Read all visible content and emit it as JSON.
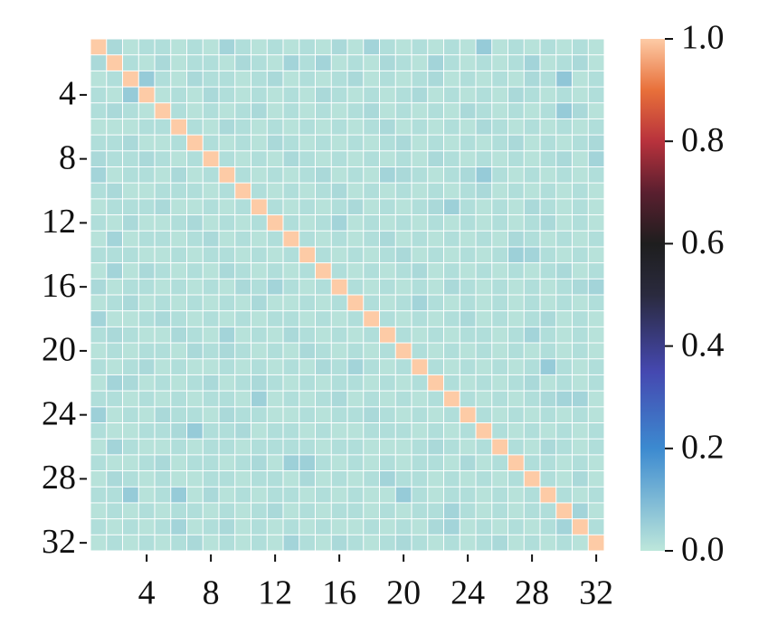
{
  "chart_data": {
    "type": "heatmap",
    "xlim": [
      0.5,
      32.5
    ],
    "ylim": [
      0.5,
      32.5
    ],
    "xticks": [
      4,
      8,
      12,
      16,
      20,
      24,
      28,
      32
    ],
    "yticks": [
      4,
      8,
      12,
      16,
      20,
      24,
      28,
      32
    ],
    "colorbar_lim": [
      0,
      1
    ],
    "colorbar_ticks": [
      {
        "value": 0,
        "label": "0.0"
      },
      {
        "value": 0.2,
        "label": "0.2"
      },
      {
        "value": 0.4,
        "label": "0.4"
      },
      {
        "value": 0.6,
        "label": "0.6"
      },
      {
        "value": 0.8,
        "label": "0.8"
      },
      {
        "value": 1,
        "label": "1.0"
      }
    ],
    "colormap": [
      [
        0,
        "#bde7db"
      ],
      [
        0.2,
        "#3c8ad0"
      ],
      [
        0.35,
        "#4548b0"
      ],
      [
        0.5,
        "#2a2a3e"
      ],
      [
        0.6,
        "#1e1e1e"
      ],
      [
        0.7,
        "#5a1f2f"
      ],
      [
        0.8,
        "#b8323c"
      ],
      [
        0.9,
        "#e8703a"
      ],
      [
        1,
        "#fdcba6"
      ]
    ],
    "values": [
      [
        1.0,
        0.03,
        0.01,
        0.02,
        0.02,
        0.01,
        0.02,
        0.01,
        0.04,
        0.02,
        0.01,
        0.02,
        0.01,
        0.02,
        0.01,
        0.03,
        0.01,
        0.04,
        0.02,
        0.01,
        0.02,
        0.01,
        0.02,
        0.01,
        0.06,
        0.01,
        0.02,
        0.01,
        0.02,
        0.01,
        0.02,
        0.01
      ],
      [
        0.03,
        1.0,
        0.02,
        0.01,
        0.03,
        0.01,
        0.02,
        0.02,
        0.01,
        0.03,
        0.02,
        0.01,
        0.04,
        0.02,
        0.04,
        0.01,
        0.02,
        0.01,
        0.03,
        0.02,
        0.01,
        0.04,
        0.02,
        0.01,
        0.02,
        0.01,
        0.02,
        0.04,
        0.01,
        0.02,
        0.03,
        0.01
      ],
      [
        0.01,
        0.02,
        1.0,
        0.06,
        0.02,
        0.01,
        0.03,
        0.02,
        0.02,
        0.01,
        0.02,
        0.03,
        0.01,
        0.02,
        0.01,
        0.02,
        0.03,
        0.01,
        0.02,
        0.01,
        0.02,
        0.03,
        0.01,
        0.02,
        0.01,
        0.02,
        0.01,
        0.03,
        0.02,
        0.07,
        0.01,
        0.02
      ],
      [
        0.02,
        0.01,
        0.06,
        1.0,
        0.01,
        0.02,
        0.01,
        0.03,
        0.02,
        0.01,
        0.02,
        0.01,
        0.02,
        0.01,
        0.03,
        0.02,
        0.01,
        0.02,
        0.01,
        0.02,
        0.03,
        0.01,
        0.02,
        0.01,
        0.02,
        0.01,
        0.03,
        0.02,
        0.01,
        0.02,
        0.01,
        0.02
      ],
      [
        0.02,
        0.03,
        0.02,
        0.01,
        1.0,
        0.02,
        0.01,
        0.02,
        0.01,
        0.02,
        0.03,
        0.01,
        0.02,
        0.01,
        0.02,
        0.01,
        0.02,
        0.03,
        0.01,
        0.02,
        0.01,
        0.02,
        0.01,
        0.03,
        0.02,
        0.01,
        0.02,
        0.01,
        0.02,
        0.06,
        0.03,
        0.01
      ],
      [
        0.01,
        0.01,
        0.01,
        0.02,
        0.02,
        1.0,
        0.02,
        0.01,
        0.03,
        0.02,
        0.01,
        0.02,
        0.01,
        0.02,
        0.01,
        0.02,
        0.01,
        0.02,
        0.03,
        0.01,
        0.02,
        0.01,
        0.02,
        0.01,
        0.03,
        0.02,
        0.01,
        0.02,
        0.01,
        0.02,
        0.01,
        0.02
      ],
      [
        0.02,
        0.02,
        0.03,
        0.01,
        0.01,
        0.02,
        1.0,
        0.02,
        0.01,
        0.02,
        0.01,
        0.03,
        0.02,
        0.01,
        0.02,
        0.01,
        0.02,
        0.01,
        0.02,
        0.03,
        0.01,
        0.02,
        0.01,
        0.02,
        0.01,
        0.02,
        0.03,
        0.01,
        0.02,
        0.01,
        0.02,
        0.03
      ],
      [
        0.03,
        0.02,
        0.02,
        0.03,
        0.02,
        0.01,
        0.02,
        1.0,
        0.02,
        0.01,
        0.02,
        0.01,
        0.03,
        0.02,
        0.01,
        0.02,
        0.01,
        0.02,
        0.01,
        0.02,
        0.01,
        0.03,
        0.02,
        0.01,
        0.02,
        0.01,
        0.02,
        0.01,
        0.02,
        0.03,
        0.01,
        0.04
      ],
      [
        0.04,
        0.01,
        0.02,
        0.02,
        0.01,
        0.03,
        0.01,
        0.02,
        1.0,
        0.02,
        0.01,
        0.02,
        0.01,
        0.02,
        0.03,
        0.01,
        0.02,
        0.01,
        0.04,
        0.03,
        0.02,
        0.01,
        0.02,
        0.03,
        0.06,
        0.02,
        0.01,
        0.02,
        0.01,
        0.02,
        0.01,
        0.02
      ],
      [
        0.02,
        0.03,
        0.01,
        0.01,
        0.02,
        0.02,
        0.02,
        0.01,
        0.02,
        1.0,
        0.02,
        0.01,
        0.02,
        0.01,
        0.02,
        0.03,
        0.01,
        0.02,
        0.01,
        0.02,
        0.01,
        0.02,
        0.01,
        0.02,
        0.03,
        0.01,
        0.02,
        0.01,
        0.02,
        0.01,
        0.02,
        0.01
      ],
      [
        0.01,
        0.02,
        0.02,
        0.02,
        0.03,
        0.01,
        0.01,
        0.02,
        0.01,
        0.02,
        1.0,
        0.02,
        0.01,
        0.02,
        0.01,
        0.02,
        0.03,
        0.01,
        0.02,
        0.01,
        0.02,
        0.03,
        0.05,
        0.02,
        0.01,
        0.02,
        0.01,
        0.03,
        0.02,
        0.01,
        0.02,
        0.01
      ],
      [
        0.02,
        0.01,
        0.03,
        0.01,
        0.01,
        0.02,
        0.03,
        0.01,
        0.02,
        0.01,
        0.02,
        1.0,
        0.02,
        0.01,
        0.02,
        0.04,
        0.01,
        0.02,
        0.01,
        0.02,
        0.01,
        0.02,
        0.01,
        0.02,
        0.01,
        0.02,
        0.01,
        0.02,
        0.03,
        0.01,
        0.02,
        0.01
      ],
      [
        0.01,
        0.04,
        0.01,
        0.02,
        0.02,
        0.01,
        0.02,
        0.03,
        0.01,
        0.02,
        0.01,
        0.02,
        1.0,
        0.02,
        0.01,
        0.02,
        0.01,
        0.02,
        0.03,
        0.01,
        0.02,
        0.01,
        0.02,
        0.01,
        0.02,
        0.01,
        0.03,
        0.02,
        0.01,
        0.02,
        0.01,
        0.02
      ],
      [
        0.02,
        0.02,
        0.02,
        0.01,
        0.01,
        0.02,
        0.01,
        0.02,
        0.02,
        0.01,
        0.02,
        0.01,
        0.02,
        1.0,
        0.02,
        0.01,
        0.02,
        0.01,
        0.02,
        0.03,
        0.01,
        0.02,
        0.01,
        0.02,
        0.01,
        0.02,
        0.05,
        0.04,
        0.02,
        0.01,
        0.02,
        0.01
      ],
      [
        0.01,
        0.04,
        0.01,
        0.03,
        0.02,
        0.01,
        0.02,
        0.01,
        0.03,
        0.02,
        0.01,
        0.02,
        0.01,
        0.02,
        1.0,
        0.02,
        0.01,
        0.02,
        0.01,
        0.02,
        0.03,
        0.01,
        0.02,
        0.01,
        0.02,
        0.01,
        0.02,
        0.01,
        0.02,
        0.03,
        0.01,
        0.02
      ],
      [
        0.03,
        0.01,
        0.02,
        0.02,
        0.01,
        0.02,
        0.01,
        0.02,
        0.01,
        0.03,
        0.02,
        0.04,
        0.02,
        0.01,
        0.02,
        1.0,
        0.02,
        0.01,
        0.02,
        0.01,
        0.02,
        0.01,
        0.03,
        0.02,
        0.01,
        0.02,
        0.01,
        0.02,
        0.01,
        0.02,
        0.03,
        0.04
      ],
      [
        0.01,
        0.02,
        0.03,
        0.01,
        0.02,
        0.01,
        0.02,
        0.01,
        0.02,
        0.01,
        0.03,
        0.01,
        0.01,
        0.02,
        0.01,
        0.02,
        1.0,
        0.02,
        0.01,
        0.02,
        0.04,
        0.02,
        0.01,
        0.02,
        0.01,
        0.02,
        0.01,
        0.02,
        0.01,
        0.02,
        0.01,
        0.02
      ],
      [
        0.04,
        0.01,
        0.01,
        0.02,
        0.03,
        0.02,
        0.01,
        0.02,
        0.01,
        0.02,
        0.01,
        0.02,
        0.02,
        0.01,
        0.02,
        0.01,
        0.02,
        1.0,
        0.02,
        0.01,
        0.02,
        0.01,
        0.02,
        0.03,
        0.01,
        0.02,
        0.01,
        0.02,
        0.03,
        0.01,
        0.02,
        0.01
      ],
      [
        0.02,
        0.03,
        0.02,
        0.01,
        0.01,
        0.03,
        0.02,
        0.01,
        0.04,
        0.01,
        0.02,
        0.01,
        0.03,
        0.02,
        0.01,
        0.02,
        0.01,
        0.02,
        1.0,
        0.02,
        0.01,
        0.02,
        0.01,
        0.02,
        0.02,
        0.01,
        0.02,
        0.04,
        0.02,
        0.01,
        0.02,
        0.01
      ],
      [
        0.01,
        0.02,
        0.01,
        0.02,
        0.02,
        0.01,
        0.03,
        0.02,
        0.03,
        0.02,
        0.01,
        0.02,
        0.01,
        0.03,
        0.02,
        0.01,
        0.02,
        0.01,
        0.02,
        1.0,
        0.02,
        0.01,
        0.02,
        0.01,
        0.02,
        0.01,
        0.02,
        0.01,
        0.02,
        0.01,
        0.02,
        0.01
      ],
      [
        0.02,
        0.01,
        0.02,
        0.03,
        0.01,
        0.02,
        0.01,
        0.01,
        0.02,
        0.01,
        0.02,
        0.01,
        0.02,
        0.01,
        0.03,
        0.02,
        0.04,
        0.02,
        0.01,
        0.02,
        1.0,
        0.02,
        0.01,
        0.02,
        0.01,
        0.02,
        0.01,
        0.02,
        0.06,
        0.02,
        0.01,
        0.02
      ],
      [
        0.01,
        0.04,
        0.03,
        0.01,
        0.02,
        0.01,
        0.02,
        0.03,
        0.01,
        0.02,
        0.03,
        0.02,
        0.01,
        0.02,
        0.01,
        0.02,
        0.02,
        0.01,
        0.02,
        0.01,
        0.02,
        1.0,
        0.02,
        0.01,
        0.02,
        0.01,
        0.02,
        0.03,
        0.01,
        0.02,
        0.01,
        0.02
      ],
      [
        0.02,
        0.02,
        0.01,
        0.02,
        0.01,
        0.02,
        0.01,
        0.02,
        0.02,
        0.01,
        0.05,
        0.01,
        0.02,
        0.01,
        0.02,
        0.03,
        0.01,
        0.02,
        0.01,
        0.02,
        0.01,
        0.02,
        1.0,
        0.02,
        0.01,
        0.02,
        0.01,
        0.02,
        0.03,
        0.04,
        0.04,
        0.01
      ],
      [
        0.05,
        0.01,
        0.02,
        0.01,
        0.03,
        0.02,
        0.02,
        0.01,
        0.03,
        0.02,
        0.02,
        0.01,
        0.01,
        0.02,
        0.01,
        0.02,
        0.02,
        0.03,
        0.02,
        0.01,
        0.02,
        0.01,
        0.02,
        1.0,
        0.02,
        0.01,
        0.02,
        0.01,
        0.02,
        0.01,
        0.02,
        0.01
      ],
      [
        0.02,
        0.01,
        0.01,
        0.02,
        0.02,
        0.03,
        0.06,
        0.02,
        0.02,
        0.03,
        0.01,
        0.02,
        0.02,
        0.01,
        0.02,
        0.01,
        0.01,
        0.02,
        0.02,
        0.02,
        0.01,
        0.02,
        0.01,
        0.02,
        1.0,
        0.02,
        0.01,
        0.02,
        0.01,
        0.02,
        0.01,
        0.02
      ],
      [
        0.01,
        0.04,
        0.02,
        0.01,
        0.01,
        0.02,
        0.01,
        0.02,
        0.02,
        0.01,
        0.02,
        0.02,
        0.02,
        0.02,
        0.01,
        0.02,
        0.02,
        0.01,
        0.01,
        0.01,
        0.02,
        0.03,
        0.02,
        0.01,
        0.02,
        1.0,
        0.02,
        0.01,
        0.03,
        0.02,
        0.01,
        0.02
      ],
      [
        0.02,
        0.01,
        0.01,
        0.02,
        0.03,
        0.01,
        0.02,
        0.02,
        0.01,
        0.02,
        0.03,
        0.01,
        0.05,
        0.05,
        0.02,
        0.01,
        0.02,
        0.01,
        0.02,
        0.01,
        0.02,
        0.02,
        0.01,
        0.03,
        0.01,
        0.02,
        1.0,
        0.02,
        0.02,
        0.01,
        0.02,
        0.01
      ],
      [
        0.01,
        0.03,
        0.02,
        0.01,
        0.02,
        0.01,
        0.01,
        0.02,
        0.02,
        0.01,
        0.02,
        0.02,
        0.01,
        0.03,
        0.01,
        0.02,
        0.01,
        0.02,
        0.04,
        0.02,
        0.02,
        0.01,
        0.02,
        0.01,
        0.02,
        0.01,
        0.02,
        1.0,
        0.02,
        0.01,
        0.03,
        0.01
      ],
      [
        0.02,
        0.02,
        0.06,
        0.01,
        0.02,
        0.06,
        0.01,
        0.03,
        0.01,
        0.02,
        0.01,
        0.02,
        0.02,
        0.01,
        0.02,
        0.01,
        0.02,
        0.01,
        0.01,
        0.06,
        0.02,
        0.01,
        0.02,
        0.02,
        0.01,
        0.02,
        0.01,
        0.02,
        1.0,
        0.02,
        0.01,
        0.02
      ],
      [
        0.01,
        0.02,
        0.01,
        0.02,
        0.01,
        0.02,
        0.02,
        0.01,
        0.02,
        0.01,
        0.02,
        0.03,
        0.01,
        0.02,
        0.01,
        0.02,
        0.02,
        0.01,
        0.02,
        0.01,
        0.02,
        0.02,
        0.04,
        0.02,
        0.01,
        0.02,
        0.01,
        0.02,
        0.02,
        1.0,
        0.04,
        0.01
      ],
      [
        0.02,
        0.01,
        0.02,
        0.01,
        0.02,
        0.04,
        0.01,
        0.02,
        0.03,
        0.01,
        0.02,
        0.01,
        0.02,
        0.01,
        0.02,
        0.01,
        0.01,
        0.02,
        0.01,
        0.02,
        0.01,
        0.03,
        0.04,
        0.01,
        0.02,
        0.01,
        0.02,
        0.01,
        0.02,
        0.04,
        1.0,
        0.02
      ],
      [
        0.01,
        0.02,
        0.01,
        0.02,
        0.01,
        0.02,
        0.03,
        0.01,
        0.02,
        0.01,
        0.02,
        0.01,
        0.04,
        0.02,
        0.01,
        0.03,
        0.02,
        0.01,
        0.02,
        0.03,
        0.02,
        0.01,
        0.02,
        0.01,
        0.02,
        0.03,
        0.01,
        0.02,
        0.01,
        0.02,
        0.01,
        1.0
      ]
    ]
  }
}
